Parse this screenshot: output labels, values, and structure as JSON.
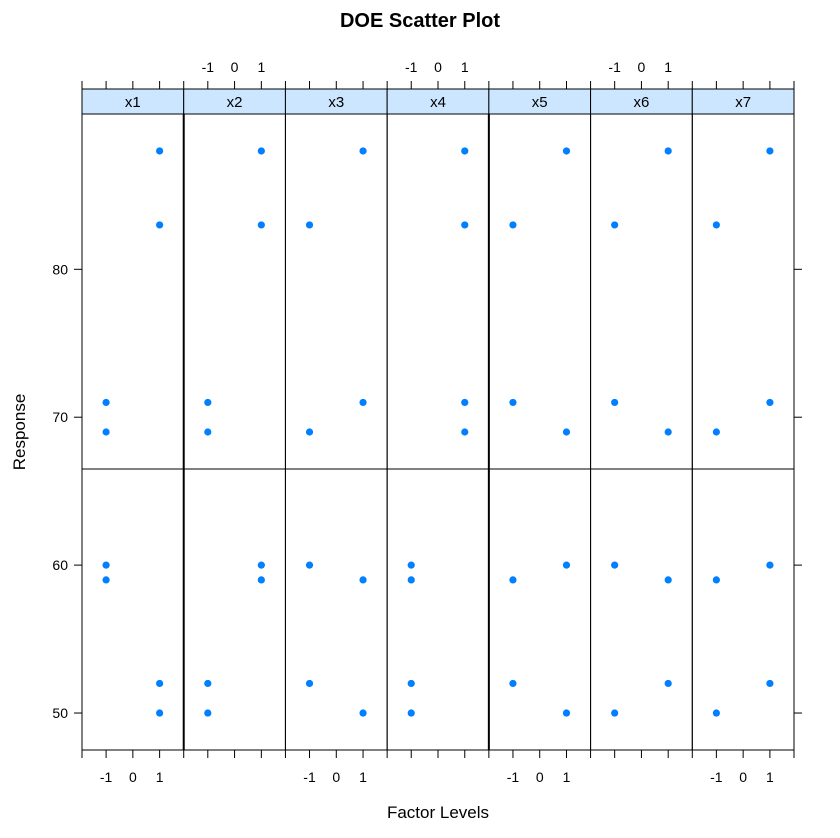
{
  "chart_data": {
    "type": "scatter",
    "title": "DOE Scatter Plot",
    "xlabel": "Factor Levels",
    "ylabel": "Response",
    "x_ticks": [
      -1,
      0,
      1
    ],
    "y_ticks": [
      50,
      60,
      70,
      80
    ],
    "xlim": [
      -1.9,
      1.9
    ],
    "ylim": [
      47.5,
      90.5
    ],
    "strip_color": "#cce6ff",
    "point_color": "#0080ff",
    "panels": [
      {
        "name": "x1",
        "points": [
          {
            "x": 1,
            "y": 88
          },
          {
            "x": 1,
            "y": 83
          },
          {
            "x": -1,
            "y": 71
          },
          {
            "x": -1,
            "y": 69
          },
          {
            "x": -1,
            "y": 60
          },
          {
            "x": -1,
            "y": 59
          },
          {
            "x": 1,
            "y": 52
          },
          {
            "x": 1,
            "y": 50
          }
        ]
      },
      {
        "name": "x2",
        "points": [
          {
            "x": 1,
            "y": 88
          },
          {
            "x": 1,
            "y": 83
          },
          {
            "x": -1,
            "y": 71
          },
          {
            "x": -1,
            "y": 69
          },
          {
            "x": 1,
            "y": 60
          },
          {
            "x": 1,
            "y": 59
          },
          {
            "x": -1,
            "y": 52
          },
          {
            "x": -1,
            "y": 50
          }
        ]
      },
      {
        "name": "x3",
        "points": [
          {
            "x": 1,
            "y": 88
          },
          {
            "x": -1,
            "y": 83
          },
          {
            "x": 1,
            "y": 71
          },
          {
            "x": -1,
            "y": 69
          },
          {
            "x": -1,
            "y": 60
          },
          {
            "x": 1,
            "y": 59
          },
          {
            "x": -1,
            "y": 52
          },
          {
            "x": 1,
            "y": 50
          }
        ]
      },
      {
        "name": "x4",
        "points": [
          {
            "x": 1,
            "y": 88
          },
          {
            "x": 1,
            "y": 83
          },
          {
            "x": 1,
            "y": 71
          },
          {
            "x": 1,
            "y": 69
          },
          {
            "x": -1,
            "y": 60
          },
          {
            "x": -1,
            "y": 59
          },
          {
            "x": -1,
            "y": 52
          },
          {
            "x": -1,
            "y": 50
          }
        ]
      },
      {
        "name": "x5",
        "points": [
          {
            "x": 1,
            "y": 88
          },
          {
            "x": -1,
            "y": 83
          },
          {
            "x": -1,
            "y": 71
          },
          {
            "x": 1,
            "y": 69
          },
          {
            "x": 1,
            "y": 60
          },
          {
            "x": -1,
            "y": 59
          },
          {
            "x": -1,
            "y": 52
          },
          {
            "x": 1,
            "y": 50
          }
        ]
      },
      {
        "name": "x6",
        "points": [
          {
            "x": 1,
            "y": 88
          },
          {
            "x": -1,
            "y": 83
          },
          {
            "x": -1,
            "y": 71
          },
          {
            "x": 1,
            "y": 69
          },
          {
            "x": -1,
            "y": 60
          },
          {
            "x": 1,
            "y": 59
          },
          {
            "x": 1,
            "y": 52
          },
          {
            "x": -1,
            "y": 50
          }
        ]
      },
      {
        "name": "x7",
        "points": [
          {
            "x": 1,
            "y": 88
          },
          {
            "x": -1,
            "y": 83
          },
          {
            "x": 1,
            "y": 71
          },
          {
            "x": -1,
            "y": 69
          },
          {
            "x": 1,
            "y": 60
          },
          {
            "x": -1,
            "y": 59
          },
          {
            "x": 1,
            "y": 52
          },
          {
            "x": -1,
            "y": 50
          }
        ]
      }
    ],
    "separators": {
      "horizontal_at": 66.5,
      "vertical_after_panels": [
        1,
        4
      ]
    },
    "top_ticks_panels": [
      2,
      4,
      6
    ],
    "bottom_ticks_panels": [
      1,
      3,
      5,
      7
    ]
  }
}
